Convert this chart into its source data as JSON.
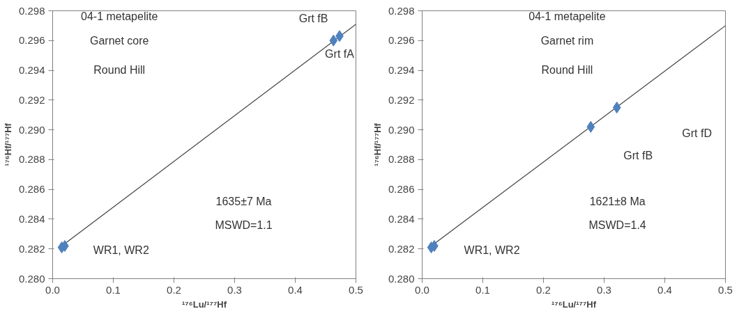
{
  "chart_data": [
    {
      "type": "scatter",
      "xlabel": "¹⁷⁶Lu/¹⁷⁷Hf",
      "ylabel": "¹⁷⁶Hf/¹⁷⁷Hf",
      "grid": false,
      "xlim": [
        0,
        0.5
      ],
      "ylim": [
        0.28,
        0.298
      ],
      "xticks": [
        {
          "value": 0,
          "label": "0.0"
        },
        0.1,
        0.2,
        0.3,
        0.4,
        0.5
      ],
      "yticks": [
        {
          "value": 0.28,
          "label": "0.280"
        },
        {
          "value": 0.282,
          "label": "0.282"
        },
        {
          "value": 0.284,
          "label": "0.284"
        },
        {
          "value": 0.286,
          "label": "0.286"
        },
        {
          "value": 0.288,
          "label": "0.288"
        },
        {
          "value": 0.29,
          "label": "0.290"
        },
        {
          "value": 0.292,
          "label": "0.292"
        },
        {
          "value": 0.294,
          "label": "0.294"
        },
        {
          "value": 0.296,
          "label": "0.296"
        },
        {
          "value": 0.298,
          "label": "0.298"
        }
      ],
      "series": [
        {
          "type": "line",
          "marker": "none",
          "color": "#404040",
          "x": [
            0.012,
            0.5
          ],
          "values": [
            0.2821,
            0.2971
          ]
        },
        {
          "marker": "diamond",
          "color": "#4f81bd",
          "x": [
            0.015,
            0.02,
            0.463,
            0.473
          ],
          "values": [
            0.2821,
            0.2822,
            0.296,
            0.2963
          ]
        }
      ],
      "annotations": [
        "04-1 metapelite",
        "Garnet core",
        "Round Hill",
        "Grt fB",
        "Grt fA",
        "WR1, WR2",
        "1635±7 Ma",
        "MSWD=1.1"
      ]
    },
    {
      "type": "scatter",
      "xlabel": "¹⁷⁶Lu/¹⁷⁷Hf",
      "ylabel": "¹⁷⁶Hf/¹⁷⁷Hf",
      "grid": false,
      "xlim": [
        0,
        0.5
      ],
      "ylim": [
        0.28,
        0.298
      ],
      "xticks": [
        {
          "value": 0,
          "label": "0.0"
        },
        0.1,
        0.2,
        0.3,
        0.4,
        0.5
      ],
      "yticks": [
        {
          "value": 0.28,
          "label": "0.280"
        },
        {
          "value": 0.282,
          "label": "0.282"
        },
        {
          "value": 0.284,
          "label": "0.284"
        },
        {
          "value": 0.286,
          "label": "0.286"
        },
        {
          "value": 0.288,
          "label": "0.288"
        },
        {
          "value": 0.29,
          "label": "0.290"
        },
        {
          "value": 0.292,
          "label": "0.292"
        },
        {
          "value": 0.294,
          "label": "0.294"
        },
        {
          "value": 0.296,
          "label": "0.296"
        },
        {
          "value": 0.298,
          "label": "0.298"
        }
      ],
      "series": [
        {
          "type": "line",
          "marker": "none",
          "color": "#404040",
          "x": [
            0.012,
            0.5
          ],
          "values": [
            0.2821,
            0.297
          ]
        },
        {
          "marker": "diamond",
          "color": "#4f81bd",
          "x": [
            0.015,
            0.02,
            0.278,
            0.321
          ],
          "values": [
            0.2821,
            0.2822,
            0.2902,
            0.2915
          ]
        }
      ],
      "annotations": [
        "04-1 metapelite",
        "Garnet rim",
        "Round Hill",
        "Grt fD",
        "Grt fB",
        "1621±8 Ma",
        "MSWD=1.4",
        "WR1, WR2"
      ]
    }
  ]
}
